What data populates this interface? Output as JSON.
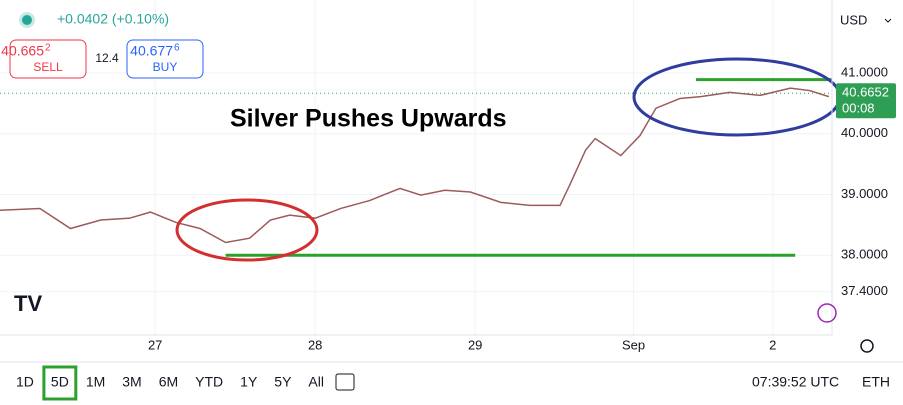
{
  "header": {
    "change": "+0.0402 (+0.10%)",
    "sell_price": "40.665",
    "sell_price_sup": "2",
    "sell_label": "SELL",
    "spread": "12.4",
    "buy_price": "40.677",
    "buy_price_sup": "6",
    "buy_label": "BUY",
    "currency": "USD"
  },
  "chart_data": {
    "type": "line",
    "title": "Silver Pushes Upwards",
    "series": [
      {
        "color": "#9c5a5a",
        "x": [
          -0.97,
          -0.72,
          -0.53,
          -0.34,
          -0.16,
          -0.03,
          0.13,
          0.28,
          0.44,
          0.59,
          0.72,
          0.84,
          1.0,
          1.16,
          1.34,
          1.53,
          1.66,
          1.81,
          1.97,
          2.16,
          2.34,
          2.53,
          2.59,
          2.69,
          2.75,
          2.91,
          3.03,
          3.13,
          3.28,
          3.41,
          3.59,
          3.78,
          3.97,
          4.09,
          4.21
        ],
        "values": [
          38.74,
          38.77,
          38.44,
          38.58,
          38.61,
          38.71,
          38.54,
          38.44,
          38.21,
          38.28,
          38.58,
          38.66,
          38.61,
          38.77,
          38.9,
          39.1,
          38.99,
          39.07,
          39.04,
          38.87,
          38.82,
          38.82,
          39.15,
          39.73,
          39.92,
          39.64,
          39.97,
          40.42,
          40.58,
          40.61,
          40.68,
          40.63,
          40.75,
          40.71,
          40.61
        ]
      }
    ],
    "levels": [
      {
        "value": 38.0,
        "from": 0.44,
        "to": 4.0,
        "color": "#2ca02c"
      },
      {
        "value": 40.89,
        "from": 3.38,
        "to": 4.23,
        "color": "#2ca02c"
      }
    ],
    "current_price": {
      "value": 40.6652,
      "timer": "00:08",
      "color": "#2e9e55"
    },
    "xlim": [
      -0.97,
      4.23
    ],
    "ylim": [
      36.77,
      42.2
    ],
    "xticks": [
      {
        "value": 0,
        "label": "27"
      },
      {
        "value": 1,
        "label": "28"
      },
      {
        "value": 2,
        "label": "29"
      },
      {
        "value": 2.99,
        "label": "Sep"
      },
      {
        "value": 3.86,
        "label": "2"
      }
    ],
    "yticks": [
      {
        "value": 41,
        "label": "41.0000"
      },
      {
        "value": 40,
        "label": "40.0000"
      },
      {
        "value": 39,
        "label": "39.0000"
      },
      {
        "value": 38,
        "label": "38.0000"
      },
      {
        "value": 37.4,
        "label": "37.4000"
      }
    ],
    "grid": true
  },
  "footer": {
    "timeframes": [
      "1D",
      "5D",
      "1M",
      "3M",
      "6M",
      "YTD",
      "1Y",
      "5Y",
      "All"
    ],
    "active": 1,
    "clock": "07:39:52 UTC",
    "session": "ETH"
  }
}
